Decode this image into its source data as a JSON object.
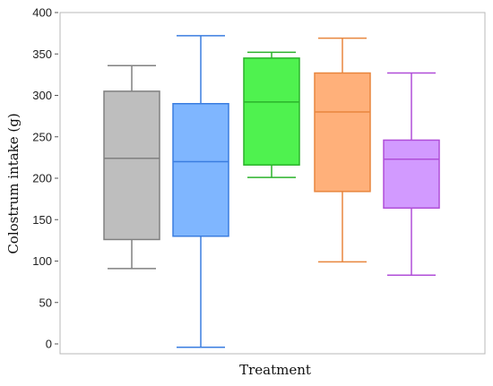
{
  "chart_data": {
    "type": "box",
    "title": "",
    "xlabel": "Treatment",
    "ylabel": "Colostrum intake (g)",
    "ylim": [
      0,
      400
    ],
    "yticks": [
      0,
      50,
      100,
      150,
      200,
      250,
      300,
      350,
      400
    ],
    "grid": false,
    "legend": "none",
    "series": [
      {
        "whisker_low": 91,
        "q1": 126,
        "median": 224,
        "q3": 305,
        "whisker_high": 336,
        "fill": "#bebebe",
        "stroke": "#808080"
      },
      {
        "whisker_low": -4,
        "q1": 130,
        "median": 220,
        "q3": 290,
        "whisker_high": 372,
        "fill": "#7fb6ff",
        "stroke": "#3a7de0"
      },
      {
        "whisker_low": 201,
        "q1": 216,
        "median": 292,
        "q3": 345,
        "whisker_high": 352,
        "fill": "#4ff24f",
        "stroke": "#2bb22b"
      },
      {
        "whisker_low": 99,
        "q1": 184,
        "median": 280,
        "q3": 327,
        "whisker_high": 369,
        "fill": "#ffb07a",
        "stroke": "#e8863e"
      },
      {
        "whisker_low": 83,
        "q1": 164,
        "median": 223,
        "q3": 246,
        "whisker_high": 327,
        "fill": "#d29aff",
        "stroke": "#b04ed8"
      }
    ]
  }
}
